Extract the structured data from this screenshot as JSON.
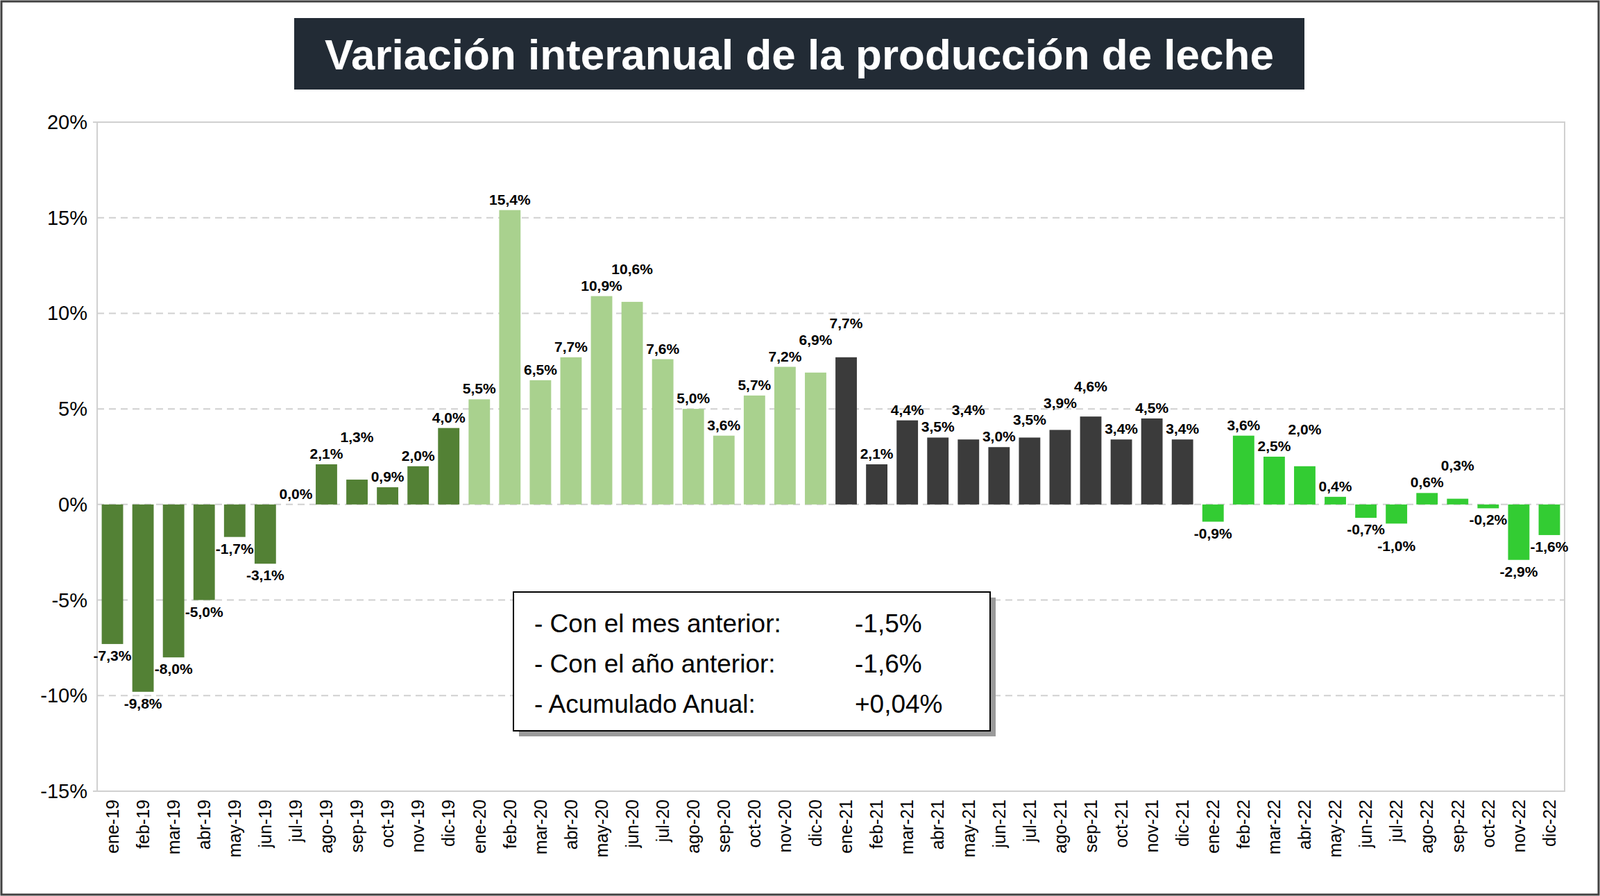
{
  "chart_data": {
    "type": "bar",
    "title": "Variación interanual de la producción de leche",
    "categories": [
      "ene-19",
      "feb-19",
      "mar-19",
      "abr-19",
      "may-19",
      "jun-19",
      "jul-19",
      "ago-19",
      "sep-19",
      "oct-19",
      "nov-19",
      "dic-19",
      "ene-20",
      "feb-20",
      "mar-20",
      "abr-20",
      "may-20",
      "jun-20",
      "jul-20",
      "ago-20",
      "sep-20",
      "oct-20",
      "nov-20",
      "dic-20",
      "ene-21",
      "feb-21",
      "mar-21",
      "abr-21",
      "may-21",
      "jun-21",
      "jul-21",
      "ago-21",
      "sep-21",
      "oct-21",
      "nov-21",
      "dic-21",
      "ene-22",
      "feb-22",
      "mar-22",
      "abr-22",
      "may-22",
      "jun-22",
      "jul-22",
      "ago-22",
      "sep-22",
      "oct-22",
      "nov-22",
      "dic-22"
    ],
    "values": [
      -7.3,
      -9.8,
      -8.0,
      -5.0,
      -1.7,
      -3.1,
      0.0,
      2.1,
      1.3,
      0.9,
      2.0,
      4.0,
      5.5,
      15.4,
      6.5,
      7.7,
      10.9,
      10.6,
      7.6,
      5.0,
      3.6,
      5.7,
      7.2,
      6.9,
      7.7,
      2.1,
      4.4,
      3.5,
      3.4,
      3.0,
      3.5,
      3.9,
      4.6,
      3.4,
      4.5,
      3.4,
      -0.9,
      3.6,
      2.5,
      2.0,
      0.4,
      -0.7,
      -1.0,
      0.6,
      0.3,
      -0.2,
      -2.9,
      -1.6
    ],
    "value_labels": [
      "-7,3%",
      "-9,8%",
      "-8,0%",
      "-5,0%",
      "-1,7%",
      "-3,1%",
      "0,0%",
      "2,1%",
      "1,3%",
      "0,9%",
      "2,0%",
      "4,0%",
      "5,5%",
      "15,4%",
      "6,5%",
      "7,7%",
      "10,9%",
      "10,6%",
      "7,6%",
      "5,0%",
      "3,6%",
      "5,7%",
      "7,2%",
      "6,9%",
      "7,7%",
      "2,1%",
      "4,4%",
      "3,5%",
      "3,4%",
      "3,0%",
      "3,5%",
      "3,9%",
      "4,6%",
      "3,4%",
      "4,5%",
      "3,4%",
      "-0,9%",
      "3,6%",
      "2,5%",
      "2,0%",
      "0,4%",
      "-0,7%",
      "-1,0%",
      "0,6%",
      "0,3%",
      "-0,2%",
      "-2,9%",
      "-1,6%"
    ],
    "colors": [
      "#538135",
      "#538135",
      "#538135",
      "#538135",
      "#538135",
      "#538135",
      "#538135",
      "#538135",
      "#538135",
      "#538135",
      "#538135",
      "#538135",
      "#a9d18e",
      "#a9d18e",
      "#a9d18e",
      "#a9d18e",
      "#a9d18e",
      "#a9d18e",
      "#a9d18e",
      "#a9d18e",
      "#a9d18e",
      "#a9d18e",
      "#a9d18e",
      "#a9d18e",
      "#3b3b3b",
      "#3b3b3b",
      "#3b3b3b",
      "#3b3b3b",
      "#3b3b3b",
      "#3b3b3b",
      "#3b3b3b",
      "#3b3b3b",
      "#3b3b3b",
      "#3b3b3b",
      "#3b3b3b",
      "#3b3b3b",
      "#33cc33",
      "#33cc33",
      "#33cc33",
      "#33cc33",
      "#33cc33",
      "#33cc33",
      "#33cc33",
      "#33cc33",
      "#33cc33",
      "#33cc33",
      "#33cc33",
      "#33cc33"
    ],
    "ylim": [
      -15,
      20
    ],
    "yticks": [
      {
        "value": -15,
        "label": "-15%"
      },
      {
        "value": -10,
        "label": "-10%"
      },
      {
        "value": -5,
        "label": "-5%"
      },
      {
        "value": 0,
        "label": "0%"
      },
      {
        "value": 5,
        "label": "5%"
      },
      {
        "value": 10,
        "label": "10%"
      },
      {
        "value": 15,
        "label": "15%"
      },
      {
        "value": 20,
        "label": "20%"
      }
    ],
    "grid": true,
    "data_labels": true,
    "annotations": [
      {
        "text": "- Con el mes anterior:",
        "figure": "-1,5%"
      },
      {
        "text": "- Con el año anterior:",
        "figure": "-1,6%"
      },
      {
        "text": "- Acumulado Anual:",
        "figure": "+0,04%"
      }
    ]
  }
}
